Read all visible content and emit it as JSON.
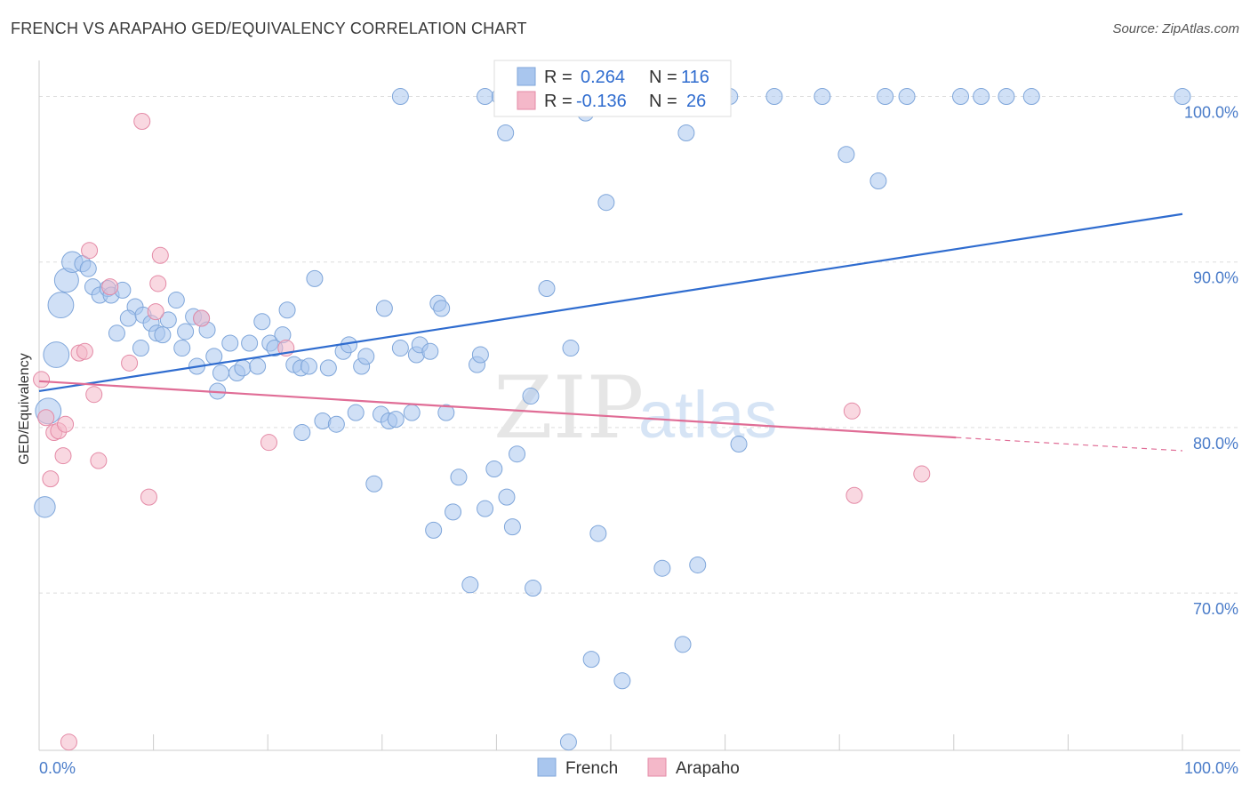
{
  "header": {
    "title": "FRENCH VS ARAPAHO GED/EQUIVALENCY CORRELATION CHART",
    "source": "Source: ZipAtlas.com"
  },
  "watermark": {
    "part1": "ZIP",
    "part2": "atlas"
  },
  "stats": {
    "french": {
      "r_label": "R =",
      "r_value": "0.264",
      "n_label": "N =",
      "n_value": "116"
    },
    "arapaho": {
      "r_label": "R =",
      "r_value": "-0.136",
      "n_label": "N =",
      "n_value": "26"
    }
  },
  "legend": {
    "french": "French",
    "arapaho": "Arapaho"
  },
  "colors": {
    "french_fill": "#a9c6ee",
    "french_stroke": "#7fa6da",
    "french_line": "#2f6ccf",
    "arapaho_fill": "#f4b8c9",
    "arapaho_stroke": "#e48aa6",
    "arapaho_line": "#e06d96",
    "tick_text": "#4a7cc9",
    "grid": "#dddddd"
  },
  "chart_data": {
    "type": "scatter",
    "title": "FRENCH VS ARAPAHO GED/EQUIVALENCY CORRELATION CHART",
    "xlabel": "",
    "ylabel": "GED/Equivalency",
    "xlim": [
      0,
      100
    ],
    "ylim": [
      60.5,
      102.5
    ],
    "x_ticks": [
      {
        "value": 0,
        "label": "0.0%"
      },
      {
        "value": 100,
        "label": "100.0%"
      }
    ],
    "y_ticks": [
      {
        "value": 70,
        "label": "70.0%"
      },
      {
        "value": 80,
        "label": "80.0%"
      },
      {
        "value": 90,
        "label": "90.0%"
      },
      {
        "value": 100,
        "label": "100.0%"
      }
    ],
    "grid": true,
    "legend_position": "bottom-center",
    "series": [
      {
        "name": "French",
        "color": "#a9c6ee",
        "trend": {
          "x": [
            0,
            100
          ],
          "y": [
            82.2,
            92.9
          ]
        },
        "points": [
          [
            0.8,
            81.0,
            1.6
          ],
          [
            0.5,
            75.2,
            1.3
          ],
          [
            1.5,
            84.4,
            1.6
          ],
          [
            1.9,
            87.4,
            1.6
          ],
          [
            2.4,
            88.9,
            1.5
          ],
          [
            2.9,
            90.0,
            1.3
          ],
          [
            3.8,
            89.9,
            1.0
          ],
          [
            4.3,
            89.6,
            1.0
          ],
          [
            4.7,
            88.5,
            1.0
          ],
          [
            5.3,
            88.0,
            1.0
          ],
          [
            6.0,
            88.4,
            1.0
          ],
          [
            6.3,
            88.0,
            1.0
          ],
          [
            7.3,
            88.3,
            1.0
          ],
          [
            8.4,
            87.3,
            1.0
          ],
          [
            7.8,
            86.6,
            1.0
          ],
          [
            9.1,
            86.8,
            1.0
          ],
          [
            9.8,
            86.3,
            1.0
          ],
          [
            10.3,
            85.7,
            1.0
          ],
          [
            10.8,
            85.6,
            1.0
          ],
          [
            6.8,
            85.7,
            1.0
          ],
          [
            8.9,
            84.8,
            1.0
          ],
          [
            11.3,
            86.5,
            1.0
          ],
          [
            12.0,
            87.7,
            1.0
          ],
          [
            12.5,
            84.8,
            1.0
          ],
          [
            12.8,
            85.8,
            1.0
          ],
          [
            13.5,
            86.7,
            1.0
          ],
          [
            14.2,
            86.6,
            1.0
          ],
          [
            14.7,
            85.9,
            1.0
          ],
          [
            13.8,
            83.7,
            1.0
          ],
          [
            15.3,
            84.3,
            1.0
          ],
          [
            15.9,
            83.3,
            1.0
          ],
          [
            16.7,
            85.1,
            1.0
          ],
          [
            17.3,
            83.3,
            1.0
          ],
          [
            17.8,
            83.6,
            1.0
          ],
          [
            18.4,
            85.1,
            1.0
          ],
          [
            19.1,
            83.7,
            1.0
          ],
          [
            19.5,
            86.4,
            1.0
          ],
          [
            20.2,
            85.1,
            1.0
          ],
          [
            20.6,
            84.8,
            1.0
          ],
          [
            21.3,
            85.6,
            1.0
          ],
          [
            21.7,
            87.1,
            1.0
          ],
          [
            22.3,
            83.8,
            1.0
          ],
          [
            22.9,
            83.6,
            1.0
          ],
          [
            23.6,
            83.7,
            1.0
          ],
          [
            24.1,
            89.0,
            1.0
          ],
          [
            25.3,
            83.6,
            1.0
          ],
          [
            15.6,
            82.2,
            1.0
          ],
          [
            23.0,
            79.7,
            1.0
          ],
          [
            24.8,
            80.4,
            1.0
          ],
          [
            26.0,
            80.2,
            1.0
          ],
          [
            26.6,
            84.6,
            1.0
          ],
          [
            27.1,
            85.0,
            1.0
          ],
          [
            27.7,
            80.9,
            1.0
          ],
          [
            28.2,
            83.7,
            1.0
          ],
          [
            28.6,
            84.3,
            1.0
          ],
          [
            29.3,
            76.6,
            1.0
          ],
          [
            29.9,
            80.8,
            1.0
          ],
          [
            30.2,
            87.2,
            1.0
          ],
          [
            30.6,
            80.4,
            1.0
          ],
          [
            31.2,
            80.5,
            1.0
          ],
          [
            31.6,
            84.8,
            1.0
          ],
          [
            32.6,
            80.9,
            1.0
          ],
          [
            33.0,
            84.4,
            1.0
          ],
          [
            33.3,
            85.0,
            1.0
          ],
          [
            34.2,
            84.6,
            1.0
          ],
          [
            34.9,
            87.5,
            1.0
          ],
          [
            35.2,
            87.2,
            1.0
          ],
          [
            34.5,
            73.8,
            1.0
          ],
          [
            35.6,
            80.9,
            1.0
          ],
          [
            36.2,
            74.9,
            1.0
          ],
          [
            36.7,
            77.0,
            1.0
          ],
          [
            37.7,
            70.5,
            1.0
          ],
          [
            38.3,
            83.8,
            1.0
          ],
          [
            38.6,
            84.4,
            1.0
          ],
          [
            39.0,
            75.1,
            1.0
          ],
          [
            39.8,
            77.5,
            1.0
          ],
          [
            40.9,
            75.8,
            1.0
          ],
          [
            41.4,
            74.0,
            1.0
          ],
          [
            41.8,
            78.4,
            1.0
          ],
          [
            43.0,
            81.9,
            1.0
          ],
          [
            43.2,
            70.3,
            1.0
          ],
          [
            44.4,
            88.4,
            1.0
          ],
          [
            46.5,
            84.8,
            1.0
          ],
          [
            46.3,
            61.0,
            1.0
          ],
          [
            48.3,
            66.0,
            1.0
          ],
          [
            48.9,
            73.6,
            1.0
          ],
          [
            49.6,
            93.6,
            1.0
          ],
          [
            51.0,
            64.7,
            1.0
          ],
          [
            54.5,
            71.5,
            1.0
          ],
          [
            56.3,
            66.9,
            1.0
          ],
          [
            57.6,
            71.7,
            1.0
          ],
          [
            61.2,
            79.0,
            1.0
          ],
          [
            70.6,
            96.5,
            1.0
          ],
          [
            73.4,
            94.9,
            1.0
          ],
          [
            31.6,
            100.0,
            1.0
          ],
          [
            39.0,
            100.0,
            1.0
          ],
          [
            40.3,
            100.0,
            1.0
          ],
          [
            40.8,
            97.8,
            1.0
          ],
          [
            42.2,
            100.0,
            1.0
          ],
          [
            47.1,
            100.0,
            1.0
          ],
          [
            47.8,
            99.0,
            1.0
          ],
          [
            49.8,
            100.0,
            1.0
          ],
          [
            52.6,
            100.0,
            1.0
          ],
          [
            55.6,
            100.0,
            1.0
          ],
          [
            56.6,
            97.8,
            1.0
          ],
          [
            58.7,
            100.0,
            1.0
          ],
          [
            60.4,
            100.0,
            1.0
          ],
          [
            64.3,
            100.0,
            1.0
          ],
          [
            68.5,
            100.0,
            1.0
          ],
          [
            74.0,
            100.0,
            1.0
          ],
          [
            75.9,
            100.0,
            1.0
          ],
          [
            80.6,
            100.0,
            1.0
          ],
          [
            82.4,
            100.0,
            1.0
          ],
          [
            84.6,
            100.0,
            1.0
          ],
          [
            86.8,
            100.0,
            1.0
          ],
          [
            100.0,
            100.0,
            1.0
          ]
        ]
      },
      {
        "name": "Arapaho",
        "color": "#f4b8c9",
        "trend": {
          "x": [
            0,
            80.2
          ],
          "y": [
            82.8,
            79.4
          ],
          "dashed_to": {
            "x": 100,
            "y": 78.6
          }
        },
        "points": [
          [
            0.2,
            82.9,
            1.0
          ],
          [
            0.6,
            80.6,
            1.0
          ],
          [
            1.0,
            76.9,
            1.0
          ],
          [
            1.3,
            79.7,
            1.0
          ],
          [
            1.7,
            79.8,
            1.0
          ],
          [
            2.1,
            78.3,
            1.0
          ],
          [
            2.3,
            80.2,
            1.0
          ],
          [
            2.6,
            61.0,
            1.0
          ],
          [
            3.5,
            84.5,
            1.0
          ],
          [
            4.0,
            84.6,
            1.0
          ],
          [
            4.4,
            90.7,
            1.0
          ],
          [
            4.8,
            82.0,
            1.0
          ],
          [
            5.2,
            78.0,
            1.0
          ],
          [
            6.2,
            88.5,
            1.0
          ],
          [
            7.9,
            83.9,
            1.0
          ],
          [
            9.0,
            98.5,
            1.0
          ],
          [
            9.6,
            75.8,
            1.0
          ],
          [
            10.2,
            87.0,
            1.0
          ],
          [
            10.4,
            88.7,
            1.0
          ],
          [
            10.6,
            90.4,
            1.0
          ],
          [
            14.2,
            86.6,
            1.0
          ],
          [
            20.1,
            79.1,
            1.0
          ],
          [
            21.6,
            84.8,
            1.0
          ],
          [
            71.1,
            81.0,
            1.0
          ],
          [
            71.3,
            75.9,
            1.0
          ],
          [
            77.2,
            77.2,
            1.0
          ]
        ]
      }
    ]
  }
}
